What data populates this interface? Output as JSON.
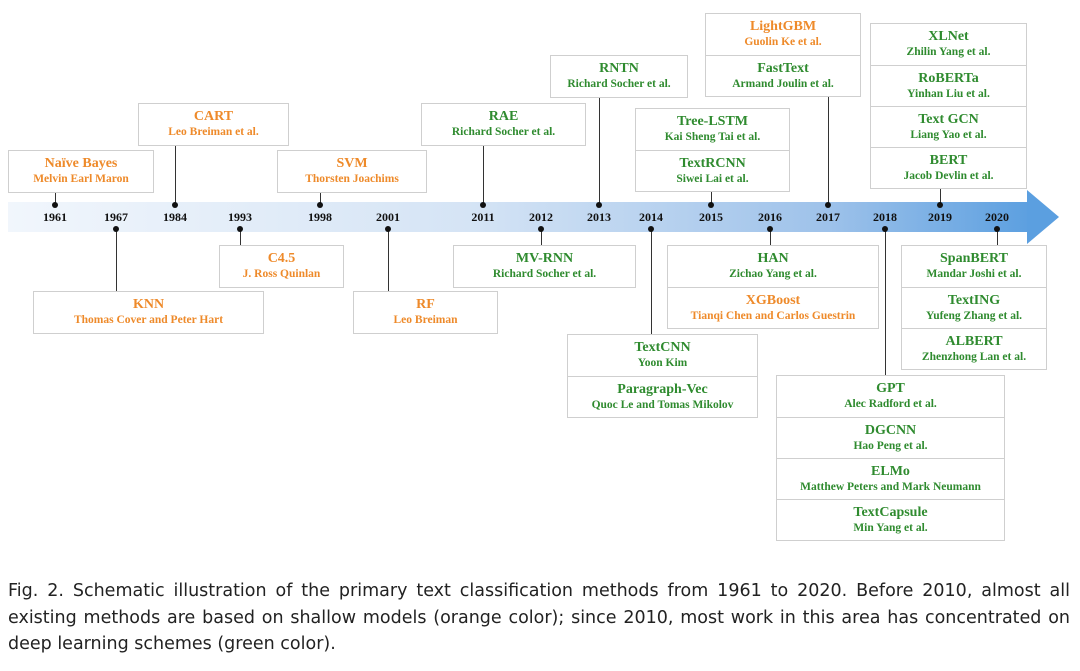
{
  "years": [
    "1961",
    "1967",
    "1984",
    "1993",
    "1998",
    "2001",
    "2011",
    "2012",
    "2013",
    "2014",
    "2015",
    "2016",
    "2017",
    "2018",
    "2019",
    "2020"
  ],
  "colors": {
    "shallow": "#ee8a2a",
    "deep": "#2f8b2f"
  },
  "groups": [
    {
      "id": "naive-bayes",
      "year": "1961",
      "side": "above",
      "methods": [
        {
          "name": "Naïve Bayes",
          "author": "Melvin Earl Maron",
          "color": "orange"
        }
      ]
    },
    {
      "id": "knn",
      "year": "1967",
      "side": "below",
      "methods": [
        {
          "name": "KNN",
          "author": "Thomas Cover and Peter Hart",
          "color": "orange"
        }
      ]
    },
    {
      "id": "cart",
      "year": "1984",
      "side": "above",
      "methods": [
        {
          "name": "CART",
          "author": "Leo Breiman et al.",
          "color": "orange"
        }
      ]
    },
    {
      "id": "c45",
      "year": "1993",
      "side": "below",
      "methods": [
        {
          "name": "C4.5",
          "author": "J. Ross Quinlan",
          "color": "orange"
        }
      ]
    },
    {
      "id": "svm",
      "year": "1998",
      "side": "above",
      "methods": [
        {
          "name": "SVM",
          "author": "Thorsten Joachims",
          "color": "orange"
        }
      ]
    },
    {
      "id": "rf",
      "year": "2001",
      "side": "below",
      "methods": [
        {
          "name": "RF",
          "author": "Leo Breiman",
          "color": "orange"
        }
      ]
    },
    {
      "id": "rae",
      "year": "2011",
      "side": "above",
      "methods": [
        {
          "name": "RAE",
          "author": "Richard Socher et al.",
          "color": "green"
        }
      ]
    },
    {
      "id": "mv-rnn",
      "year": "2012",
      "side": "below",
      "methods": [
        {
          "name": "MV-RNN",
          "author": "Richard Socher et al.",
          "color": "green"
        }
      ]
    },
    {
      "id": "rntn",
      "year": "2013",
      "side": "above",
      "methods": [
        {
          "name": "RNTN",
          "author": "Richard Socher et al.",
          "color": "green"
        }
      ]
    },
    {
      "id": "y2014",
      "year": "2014",
      "side": "below",
      "methods": [
        {
          "name": "TextCNN",
          "author": "Yoon Kim",
          "color": "green"
        },
        {
          "name": "Paragraph-Vec",
          "author": "Quoc Le and Tomas Mikolov",
          "color": "green"
        }
      ]
    },
    {
      "id": "y2015",
      "year": "2015",
      "side": "above",
      "methods": [
        {
          "name": "Tree-LSTM",
          "author": "Kai Sheng Tai et al.",
          "color": "green"
        },
        {
          "name": "TextRCNN",
          "author": "Siwei Lai et al.",
          "color": "green"
        }
      ]
    },
    {
      "id": "y2016",
      "year": "2016",
      "side": "below",
      "methods": [
        {
          "name": "HAN",
          "author": "Zichao Yang et al.",
          "color": "green"
        },
        {
          "name": "XGBoost",
          "author": "Tianqi Chen and Carlos Guestrin",
          "color": "orange"
        }
      ]
    },
    {
      "id": "y2017",
      "year": "2017",
      "side": "above",
      "methods": [
        {
          "name": "LightGBM",
          "author": "Guolin Ke et al.",
          "color": "orange"
        },
        {
          "name": "FastText",
          "author": "Armand Joulin et al.",
          "color": "green"
        }
      ]
    },
    {
      "id": "y2018",
      "year": "2018",
      "side": "below",
      "methods": [
        {
          "name": "GPT",
          "author": "Alec Radford et al.",
          "color": "green"
        },
        {
          "name": "DGCNN",
          "author": "Hao Peng et al.",
          "color": "green"
        },
        {
          "name": "ELMo",
          "author": "Matthew Peters and Mark Neumann",
          "color": "green"
        },
        {
          "name": "TextCapsule",
          "author": "Min Yang et al.",
          "color": "green"
        }
      ]
    },
    {
      "id": "y2019",
      "year": "2019",
      "side": "above",
      "methods": [
        {
          "name": "XLNet",
          "author": "Zhilin Yang et al.",
          "color": "green"
        },
        {
          "name": "RoBERTa",
          "author": "Yinhan Liu et al.",
          "color": "green"
        },
        {
          "name": "Text GCN",
          "author": "Liang Yao et al.",
          "color": "green"
        },
        {
          "name": "BERT",
          "author": "Jacob Devlin et al.",
          "color": "green"
        }
      ]
    },
    {
      "id": "y2020",
      "year": "2020",
      "side": "below",
      "methods": [
        {
          "name": "SpanBERT",
          "author": "Mandar Joshi et al.",
          "color": "green"
        },
        {
          "name": "TextING",
          "author": "Yufeng Zhang et al.",
          "color": "green"
        },
        {
          "name": "ALBERT",
          "author": "Zhenzhong Lan et al.",
          "color": "green"
        }
      ]
    }
  ],
  "caption": "Fig. 2.  Schematic illustration of the primary text classification methods from 1961 to 2020. Before 2010, almost all existing methods are based on shallow models (orange color); since 2010, most work in this area has concentrated on deep learning schemes (green color)."
}
